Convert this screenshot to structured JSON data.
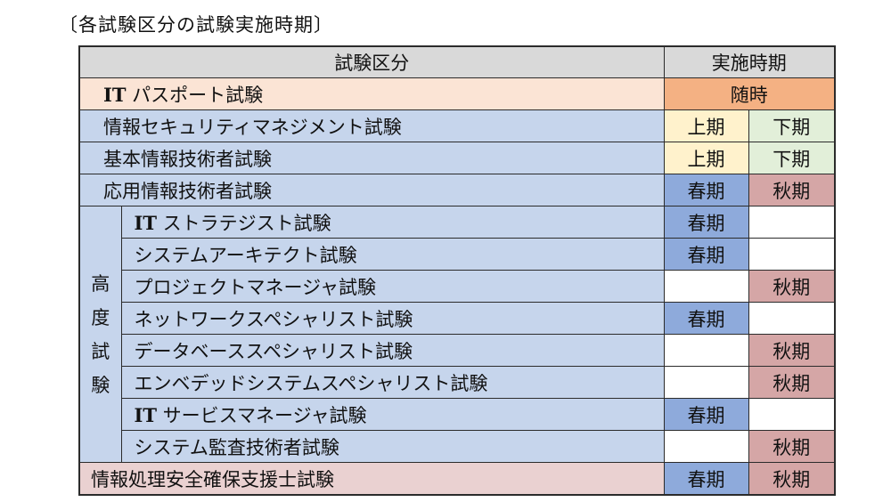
{
  "title": "〔各試験区分の試験実施時期〕",
  "header": {
    "category": "試験区分",
    "period": "実施時期"
  },
  "group_label": [
    "高",
    "度",
    "試",
    "験"
  ],
  "rows": [
    {
      "prefix": "IT",
      "name": " パスポート試験",
      "period": "随時"
    },
    {
      "name": "情報セキュリティマネジメント試験",
      "first": "上期",
      "second": "下期"
    },
    {
      "name": "基本情報技術者試験",
      "first": "上期",
      "second": "下期"
    },
    {
      "name": "応用情報技術者試験",
      "first": "春期",
      "second": "秋期"
    },
    {
      "prefix": "IT",
      "name": " ストラテジスト試験",
      "first": "春期",
      "second": ""
    },
    {
      "name": "システムアーキテクト試験",
      "first": "春期",
      "second": ""
    },
    {
      "name": "プロジェクトマネージャ試験",
      "first": "",
      "second": "秋期"
    },
    {
      "name": "ネットワークスペシャリスト試験",
      "first": "春期",
      "second": ""
    },
    {
      "name": "データベーススペシャリスト試験",
      "first": "",
      "second": "秋期"
    },
    {
      "name": "エンベデッドシステムスペシャリスト試験",
      "first": "",
      "second": "秋期"
    },
    {
      "prefix": "IT",
      "name": " サービスマネージャ試験",
      "first": "春期",
      "second": ""
    },
    {
      "name": "システム監査技術者試験",
      "first": "",
      "second": "秋期"
    },
    {
      "name": "情報処理安全確保支援士試験",
      "first": "春期",
      "second": "秋期"
    }
  ],
  "colors": {
    "header": "#d9d9d9",
    "it_passport": "#fbe4d5",
    "exam_blue": "#c6d5ec",
    "support_pink": "#ead1d1",
    "anytime": "#f4b183",
    "first_half": "#fff2cc",
    "second_half": "#e2efd9",
    "spring": "#8eaadb",
    "autumn": "#d5a6a6"
  }
}
